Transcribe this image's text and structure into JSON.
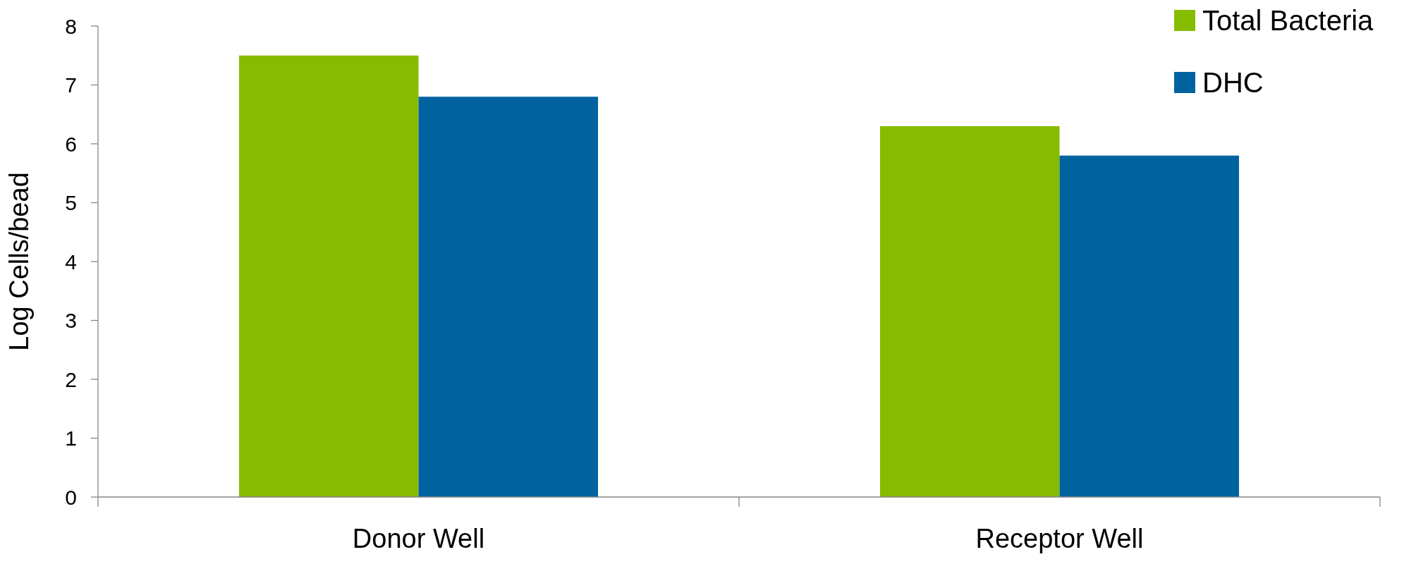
{
  "chart_data": {
    "type": "bar",
    "ylabel": "Log Cells/bead",
    "categories": [
      "Donor Well",
      "Receptor Well"
    ],
    "series": [
      {
        "name": "Total Bacteria",
        "color": "#86bc00",
        "values": [
          7.5,
          6.3
        ]
      },
      {
        "name": "DHC",
        "color": "#0063a0",
        "values": [
          6.8,
          5.8
        ]
      }
    ],
    "ylim": [
      0,
      8
    ],
    "yticks": [
      0,
      1,
      2,
      3,
      4,
      5,
      6,
      7,
      8
    ],
    "grid": false,
    "legend": "top right"
  }
}
